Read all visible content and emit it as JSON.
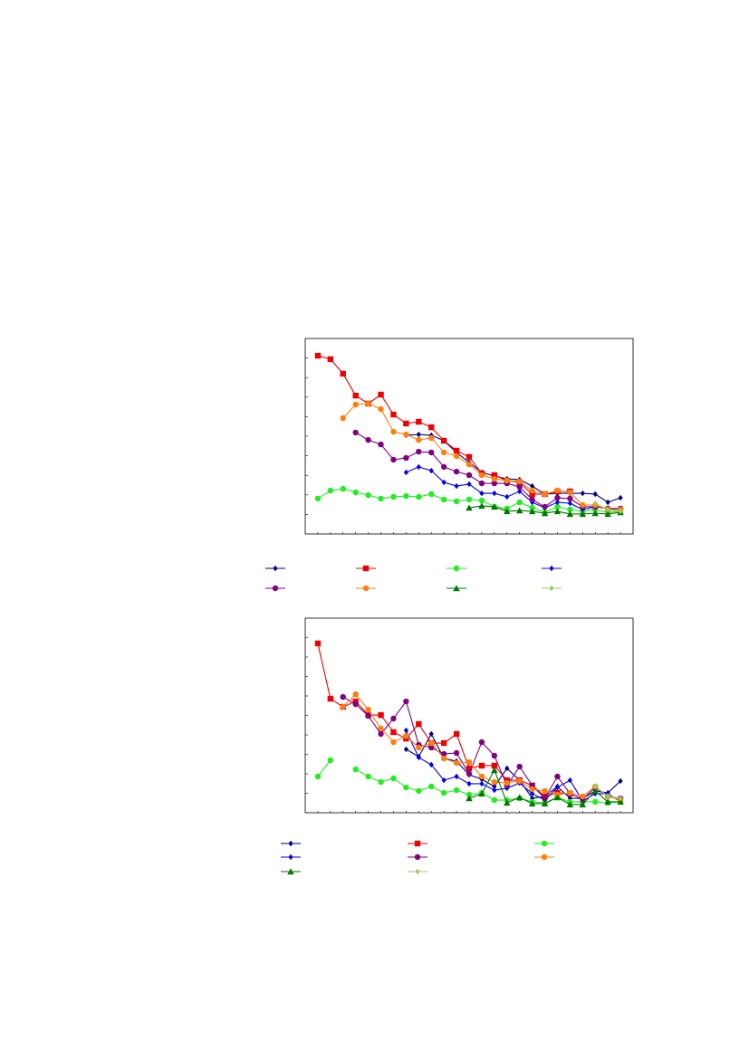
{
  "chart_data": [
    {
      "type": "line",
      "xlim": [
        0,
        26
      ],
      "ylim": [
        0,
        100
      ],
      "x": [
        1,
        2,
        3,
        4,
        5,
        6,
        7,
        8,
        9,
        10,
        11,
        12,
        13,
        14,
        15,
        16,
        17,
        18,
        19,
        20,
        21,
        22,
        23,
        24,
        25
      ],
      "series": [
        {
          "color": "#000080",
          "marker": "diamond",
          "values": [
            null,
            null,
            null,
            null,
            null,
            null,
            null,
            50.5,
            50.9,
            50.5,
            47.7,
            41.7,
            36.6,
            31.5,
            29.6,
            28.2,
            27.8,
            24.5,
            20.4,
            20.8,
            20.8,
            20.8,
            20.4,
            16.2,
            18.5
          ]
        },
        {
          "color": "#ee0000",
          "marker": "square",
          "values": [
            91.2,
            89.4,
            82.0,
            70.8,
            66.7,
            71.3,
            61.1,
            56.5,
            57.4,
            54.6,
            47.7,
            42.6,
            39.4,
            31.0,
            30.1,
            27.3,
            26.4,
            20.4,
            20.4,
            21.8,
            21.8,
            null,
            null,
            null,
            null
          ]
        },
        {
          "color": "#22ee22",
          "marker": "circle",
          "values": [
            18.1,
            22.2,
            23.1,
            21.3,
            19.9,
            18.1,
            19.0,
            19.4,
            19.0,
            20.4,
            17.6,
            16.7,
            17.6,
            17.1,
            13.9,
            13.0,
            16.2,
            13.4,
            11.1,
            13.9,
            12.5,
            11.6,
            12.5,
            11.1,
            11.6
          ]
        },
        {
          "color": "#0000ee",
          "marker": "diamond",
          "values": [
            null,
            null,
            null,
            null,
            null,
            null,
            null,
            31.5,
            34.3,
            32.4,
            26.4,
            24.5,
            25.5,
            20.8,
            20.8,
            19.0,
            21.8,
            16.2,
            13.4,
            16.2,
            15.7,
            12.5,
            13.9,
            13.0,
            13.0
          ]
        },
        {
          "color": "#800080",
          "marker": "circle",
          "values": [
            null,
            null,
            null,
            51.9,
            48.1,
            45.8,
            38.0,
            38.9,
            42.1,
            41.7,
            34.3,
            31.9,
            30.1,
            25.9,
            25.9,
            25.9,
            24.1,
            17.6,
            13.9,
            18.5,
            18.1,
            13.9,
            13.9,
            13.0,
            13.0
          ]
        },
        {
          "color": "#ff7f0e",
          "marker": "circle",
          "values": [
            null,
            null,
            59.3,
            66.2,
            66.7,
            63.9,
            52.3,
            50.9,
            48.1,
            49.1,
            41.7,
            39.8,
            35.6,
            30.1,
            28.2,
            27.3,
            26.9,
            22.2,
            20.4,
            22.2,
            21.3,
            14.8,
            14.8,
            12.5,
            12.5
          ]
        },
        {
          "color": "#007700",
          "marker": "triangle",
          "values": [
            null,
            null,
            null,
            null,
            null,
            null,
            null,
            null,
            null,
            null,
            null,
            null,
            13.4,
            14.4,
            13.9,
            11.6,
            12.0,
            11.6,
            10.6,
            11.6,
            10.2,
            10.2,
            10.6,
            10.2,
            11.1
          ]
        },
        {
          "color": "#99cc66",
          "marker": "diamond",
          "values": [
            null,
            null,
            null,
            null,
            null,
            null,
            null,
            null,
            null,
            null,
            null,
            null,
            null,
            null,
            null,
            null,
            null,
            null,
            null,
            null,
            null,
            null,
            15.7,
            12.5,
            11.6
          ]
        }
      ]
    },
    {
      "type": "line",
      "xlim": [
        0,
        26
      ],
      "ylim": [
        0,
        100
      ],
      "x": [
        1,
        2,
        3,
        4,
        5,
        6,
        7,
        8,
        9,
        10,
        11,
        12,
        13,
        14,
        15,
        16,
        17,
        18,
        19,
        20,
        21,
        22,
        23,
        24,
        25
      ],
      "series": [
        {
          "color": "#000080",
          "marker": "diamond",
          "values": [
            null,
            null,
            null,
            null,
            null,
            null,
            null,
            32.6,
            28.8,
            40.5,
            27.9,
            26.5,
            19.5,
            17.2,
            13.5,
            22.8,
            16.7,
            7.4,
            8.4,
            13.5,
            7.4,
            7.4,
            11.2,
            10.2,
            16.3
          ]
        },
        {
          "color": "#ee0000",
          "marker": "square",
          "values": [
            87.0,
            58.6,
            54.4,
            57.2,
            50.2,
            50.2,
            41.4,
            38.1,
            45.6,
            35.8,
            35.8,
            40.5,
            22.8,
            24.2,
            24.2,
            16.7,
            16.7,
            14.0,
            8.4,
            10.2,
            9.8,
            null,
            null,
            null,
            null
          ]
        },
        {
          "color": "#22ee22",
          "marker": "circle",
          "values": [
            18.6,
            27.0,
            null,
            22.3,
            18.6,
            15.8,
            17.7,
            13.0,
            11.2,
            13.5,
            10.2,
            11.6,
            9.3,
            10.2,
            6.5,
            6.5,
            7.4,
            5.6,
            5.1,
            7.9,
            5.6,
            5.6,
            5.6,
            5.1,
            5.6
          ]
        },
        {
          "color": "#0000ee",
          "marker": "diamond",
          "values": [
            null,
            null,
            null,
            null,
            null,
            null,
            null,
            42.3,
            28.4,
            24.7,
            16.7,
            18.6,
            14.9,
            14.9,
            11.6,
            12.6,
            15.3,
            9.8,
            6.5,
            13.0,
            16.7,
            6.0,
            9.8,
            9.8,
            5.6
          ]
        },
        {
          "color": "#800080",
          "marker": "circle",
          "values": [
            null,
            null,
            59.5,
            55.8,
            49.8,
            40.5,
            48.4,
            57.2,
            34.9,
            33.5,
            30.2,
            30.7,
            20.0,
            36.3,
            29.3,
            14.0,
            23.7,
            14.0,
            7.4,
            18.6,
            9.8,
            7.0,
            13.0,
            8.4,
            7.4
          ]
        },
        {
          "color": "#ff7f0e",
          "marker": "circle",
          "values": [
            null,
            null,
            54.4,
            60.9,
            53.0,
            43.3,
            36.3,
            39.5,
            33.5,
            35.8,
            27.9,
            25.6,
            26.0,
            18.6,
            15.8,
            15.3,
            16.3,
            12.1,
            11.2,
            9.3,
            10.2,
            8.4,
            13.5,
            8.4,
            6.5
          ]
        },
        {
          "color": "#007700",
          "marker": "triangle",
          "values": [
            null,
            null,
            null,
            null,
            null,
            null,
            null,
            null,
            null,
            null,
            null,
            null,
            7.4,
            9.8,
            21.9,
            5.1,
            7.9,
            4.7,
            4.7,
            7.9,
            4.2,
            4.2,
            11.2,
            5.6,
            5.6
          ]
        },
        {
          "color": "#99cc66",
          "marker": "diamond",
          "values": [
            null,
            null,
            null,
            null,
            null,
            null,
            null,
            null,
            null,
            null,
            null,
            null,
            null,
            null,
            null,
            null,
            null,
            null,
            null,
            null,
            null,
            null,
            13.5,
            8.4,
            7.4
          ]
        }
      ]
    }
  ]
}
